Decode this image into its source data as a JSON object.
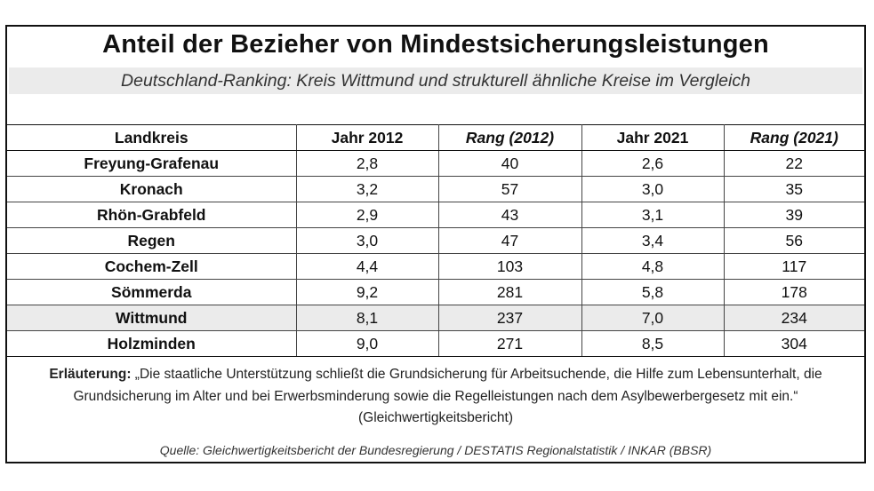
{
  "chart_data": {
    "type": "table",
    "title": "Anteil der Bezieher von Mindestsicherungsleistungen",
    "subtitle": "Deutschland-Ranking: Kreis Wittmund und strukturell ähnliche Kreise im Vergleich",
    "columns": [
      "Landkreis",
      "Jahr 2012",
      "Rang (2012)",
      "Jahr 2021",
      "Rang (2021)"
    ],
    "rows": [
      [
        "Freyung-Grafenau",
        "2,8",
        "40",
        "2,6",
        "22"
      ],
      [
        "Kronach",
        "3,2",
        "57",
        "3,0",
        "35"
      ],
      [
        "Rhön-Grabfeld",
        "2,9",
        "43",
        "3,1",
        "39"
      ],
      [
        "Regen",
        "3,0",
        "47",
        "3,4",
        "56"
      ],
      [
        "Cochem-Zell",
        "4,4",
        "103",
        "4,8",
        "117"
      ],
      [
        "Sömmerda",
        "9,2",
        "281",
        "5,8",
        "178"
      ],
      [
        "Wittmund",
        "8,1",
        "237",
        "7,0",
        "234"
      ],
      [
        "Holzminden",
        "9,0",
        "271",
        "8,5",
        "304"
      ]
    ],
    "highlight_row": "Wittmund",
    "note_label": "Erläuterung:",
    "note_text": " „Die staatliche Unterstützung schließt die Grundsicherung für Arbeitsuchende, die Hilfe zum Lebensunterhalt, die Grundsicherung im Alter und bei Erwerbsminderung sowie die Regelleistungen nach dem Asylbewerbergesetz mit ein.“ (Gleichwertigkeitsbericht)",
    "source": "Quelle: Gleichwertigkeitsbericht der Bundesregierung / DESTATIS Regionalstatistik / INKAR (BBSR)"
  },
  "colors": {
    "highlight": "#ebebeb",
    "border": "#111111"
  }
}
